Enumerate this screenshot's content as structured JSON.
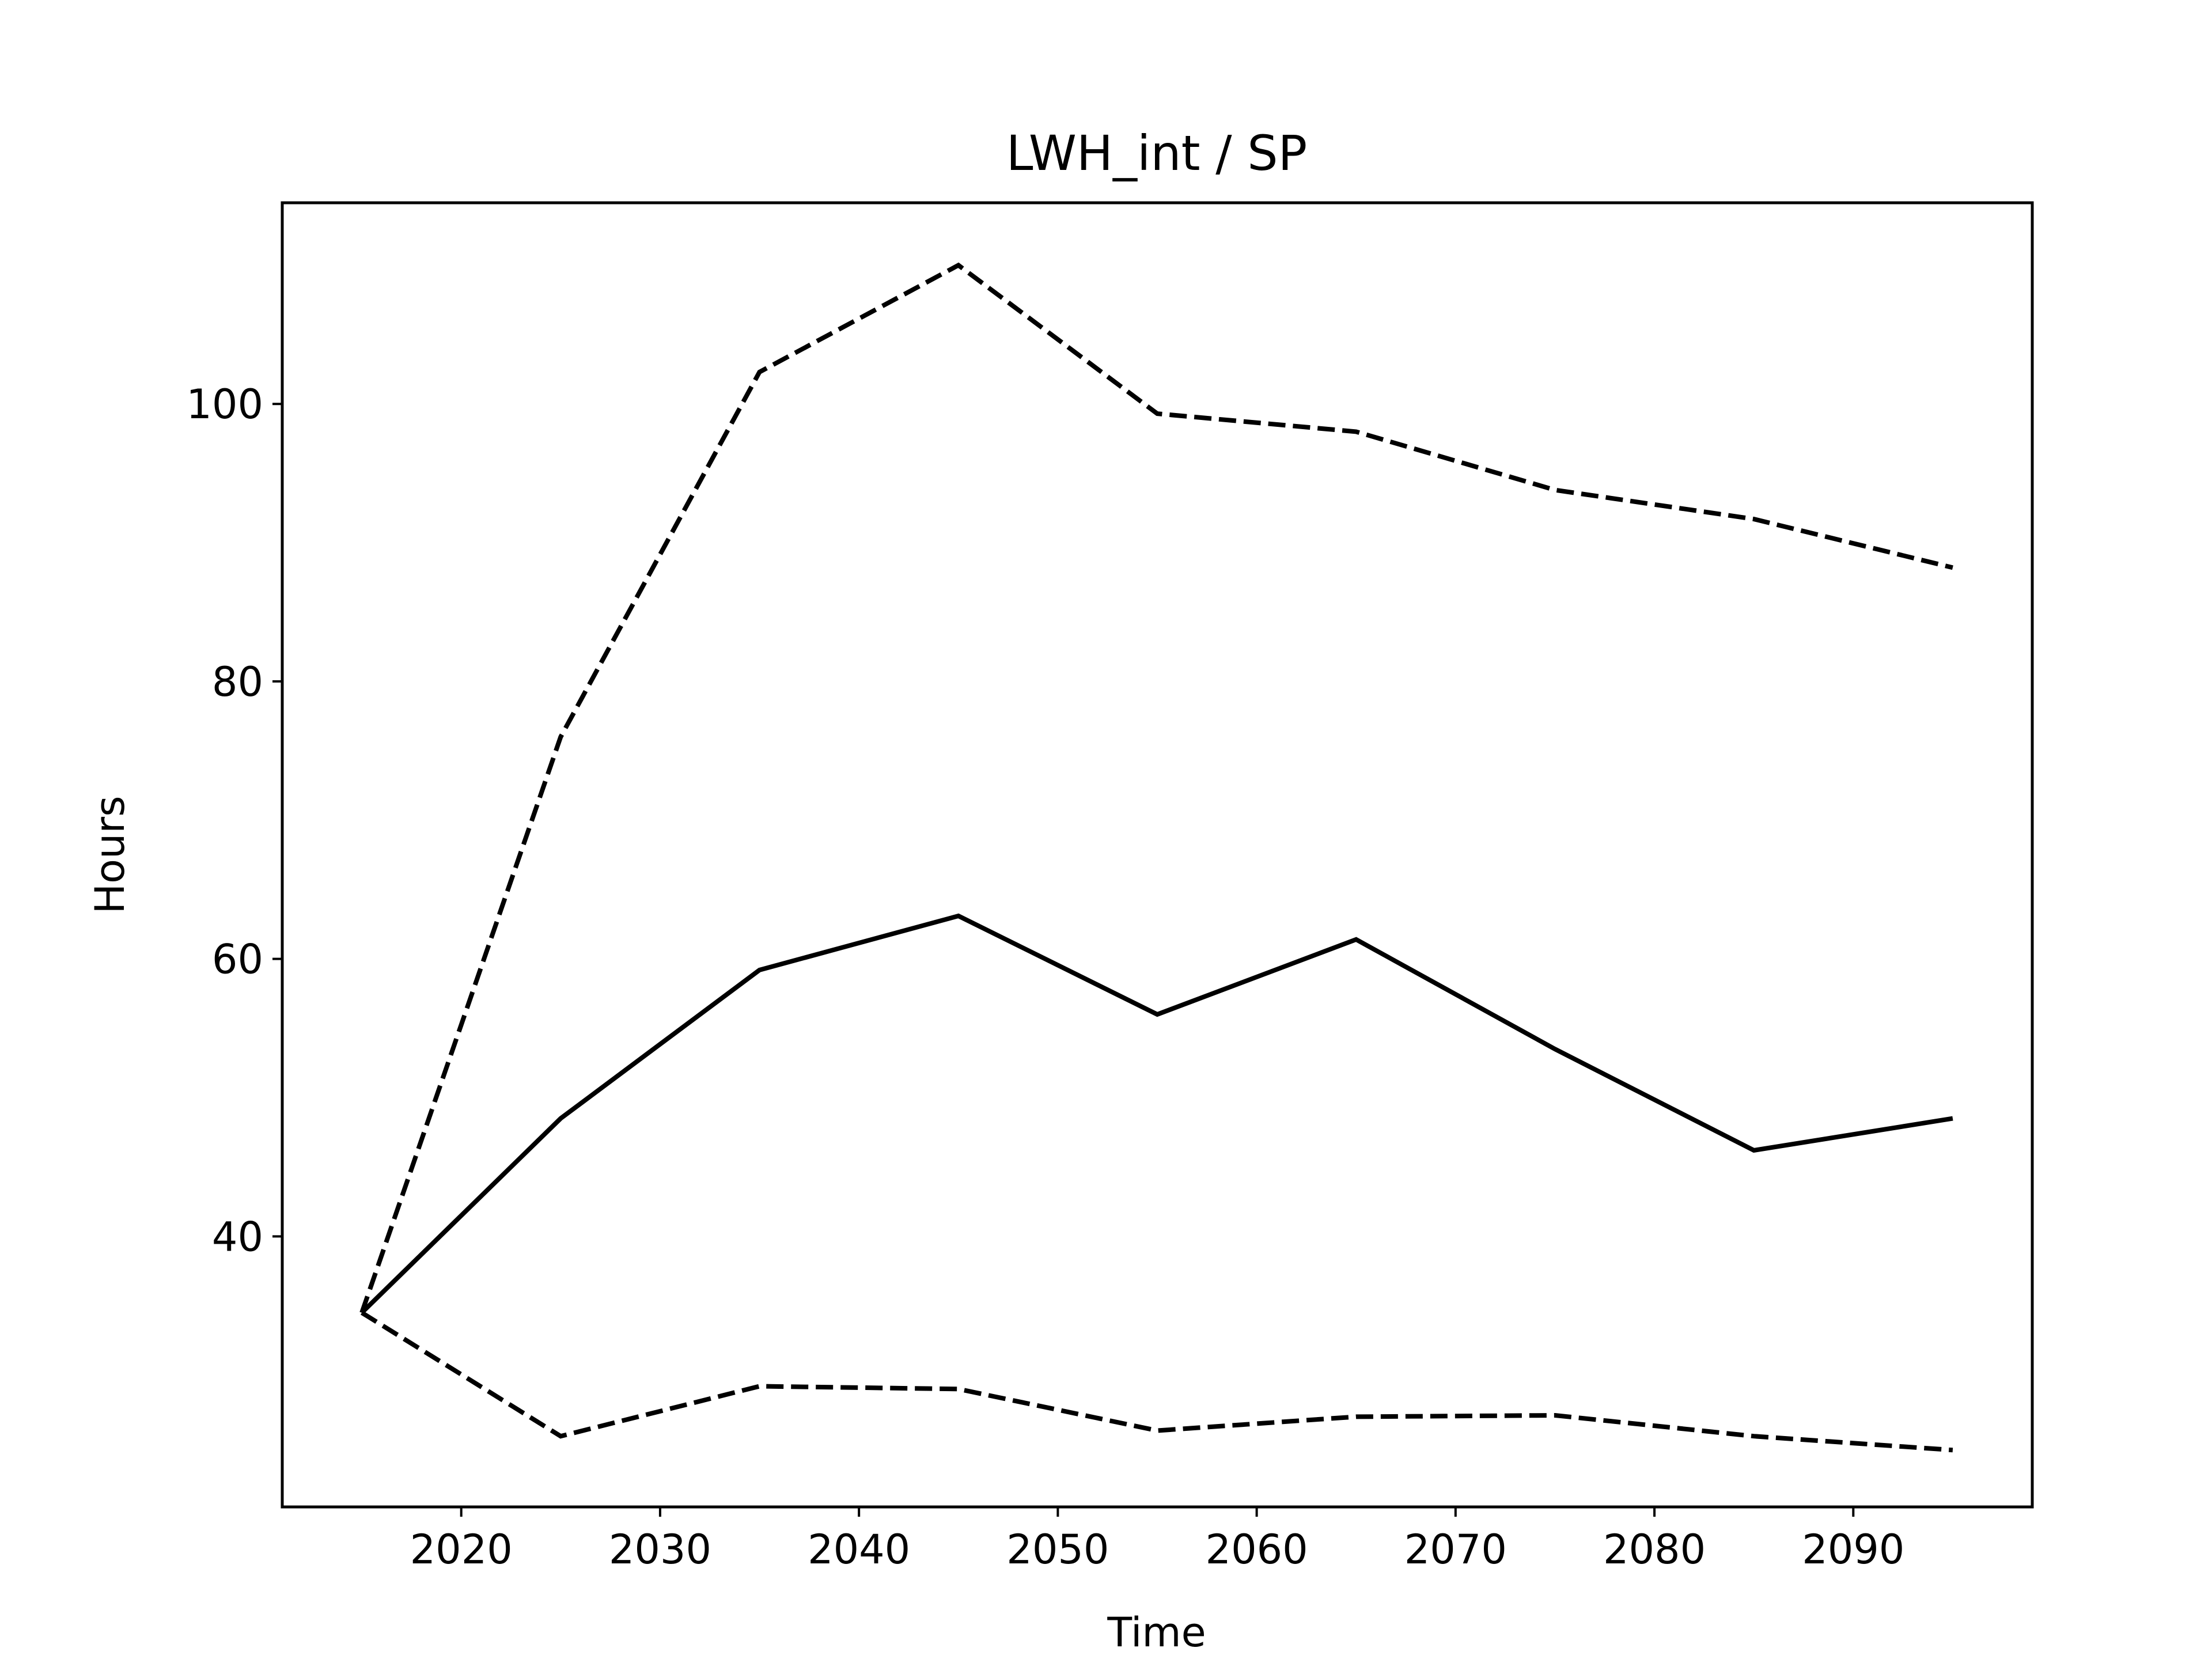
{
  "chart_data": {
    "type": "line",
    "title": "LWH_int / SP",
    "xlabel": "Time",
    "ylabel": "Hours",
    "xlim": [
      2011,
      2099
    ],
    "ylim": [
      20.5,
      114.5
    ],
    "xticks": [
      2020,
      2030,
      2040,
      2050,
      2060,
      2070,
      2080,
      2090
    ],
    "yticks": [
      40,
      60,
      80,
      100
    ],
    "grid": false,
    "legend": "none",
    "x": [
      2015,
      2025,
      2035,
      2045,
      2055,
      2065,
      2075,
      2085,
      2095
    ],
    "series": [
      {
        "style": "dashed",
        "color": "#000000",
        "values": [
          34.5,
          76.0,
          102.3,
          110.0,
          99.3,
          98.0,
          93.8,
          91.7,
          88.2
        ]
      },
      {
        "style": "solid",
        "color": "#000000",
        "values": [
          34.5,
          48.5,
          59.2,
          63.1,
          56.0,
          61.4,
          53.5,
          46.2,
          48.5
        ]
      },
      {
        "style": "dashed",
        "color": "#000000",
        "values": [
          34.5,
          25.6,
          29.2,
          29.0,
          26.0,
          27.0,
          27.1,
          25.6,
          24.6
        ]
      }
    ]
  }
}
